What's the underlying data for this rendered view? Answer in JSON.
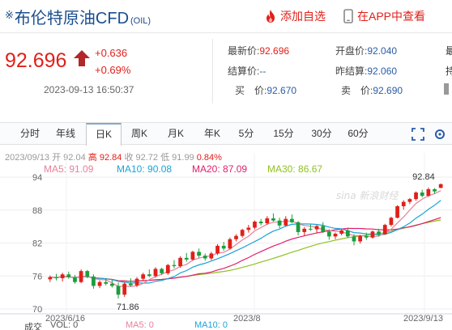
{
  "header": {
    "title_mark": "※",
    "title": "布伦特原油CFD",
    "code": "(OIL)",
    "add_watchlist": "添加自选",
    "view_in_app": "在APP中查看",
    "accent_color": "#e0201a",
    "title_color": "#1a4d8f"
  },
  "quote": {
    "price": "92.696",
    "change": "+0.636",
    "change_pct": "+0.69%",
    "time": "2023-09-13 16:50:37",
    "fields": {
      "latest": {
        "label": "最新价:",
        "value": "92.696"
      },
      "open": {
        "label": "开盘价:",
        "value": "92.040"
      },
      "settle": {
        "label": "结算价:",
        "value": "--"
      },
      "prev_settle": {
        "label": "昨结算:",
        "value": "92.060"
      },
      "bid": {
        "label": "买　价:",
        "value": "92.670"
      },
      "ask": {
        "label": "卖　价:",
        "value": "92.690"
      }
    },
    "cut_right_1": "最",
    "cut_right_2": "持"
  },
  "tabs": [
    {
      "label": "分时"
    },
    {
      "label": "年线"
    },
    {
      "label": "日K"
    },
    {
      "label": "周K"
    },
    {
      "label": "月K"
    },
    {
      "label": "年K"
    },
    {
      "label": "5分"
    },
    {
      "label": "15分"
    },
    {
      "label": "30分"
    },
    {
      "label": "60分"
    }
  ],
  "active_tab": "日K",
  "ohlc_line": {
    "date": "2023/09/13",
    "open": "开 92.04",
    "high": "高 92.84",
    "low": "收 92.72",
    "close": "低 91.99",
    "pct": "0.84%"
  },
  "ma": {
    "ma5": {
      "label": "MA5: 91.09",
      "color": "#e8809a"
    },
    "ma10": {
      "label": "MA10: 90.08",
      "color": "#1aa3d9"
    },
    "ma20": {
      "label": "MA20: 87.09",
      "color": "#e0206a"
    },
    "ma30": {
      "label": "MA30: 86.67",
      "color": "#8fc21f"
    }
  },
  "chart_data": {
    "type": "candlestick",
    "y_ticks": [
      "94",
      "88",
      "82",
      "76",
      "70"
    ],
    "ylim": [
      70,
      94
    ],
    "x_labels": [
      "2023/6/16",
      "2023/8",
      "2023/9/13"
    ],
    "max_label": "92.84",
    "min_label": "71.86",
    "watermark": "sina 新浪财经",
    "candles": [
      [
        75.4,
        76.1,
        74.9,
        75.8
      ],
      [
        75.8,
        76.4,
        75.2,
        75.6
      ],
      [
        75.6,
        76.6,
        75.0,
        76.3
      ],
      [
        76.3,
        76.8,
        75.5,
        75.8
      ],
      [
        75.8,
        76.2,
        74.6,
        74.9
      ],
      [
        74.9,
        77.2,
        74.7,
        76.9
      ],
      [
        76.9,
        77.1,
        75.6,
        75.9
      ],
      [
        75.9,
        76.3,
        73.7,
        74.2
      ],
      [
        74.2,
        75.2,
        73.8,
        74.9
      ],
      [
        74.9,
        75.6,
        74.3,
        74.6
      ],
      [
        74.6,
        75.3,
        73.9,
        74.2
      ],
      [
        74.2,
        74.8,
        71.9,
        72.6
      ],
      [
        72.6,
        74.9,
        72.2,
        74.6
      ],
      [
        74.6,
        75.6,
        74.1,
        74.3
      ],
      [
        74.3,
        75.8,
        74.0,
        75.5
      ],
      [
        75.5,
        76.6,
        75.1,
        76.3
      ],
      [
        76.3,
        77.2,
        75.8,
        76.0
      ],
      [
        76.0,
        77.6,
        75.7,
        77.3
      ],
      [
        77.3,
        77.5,
        76.2,
        76.5
      ],
      [
        76.5,
        78.2,
        76.2,
        78.0
      ],
      [
        78.0,
        78.9,
        77.4,
        77.8
      ],
      [
        77.8,
        79.6,
        77.5,
        79.3
      ],
      [
        79.3,
        80.2,
        78.6,
        79.0
      ],
      [
        79.0,
        80.6,
        78.8,
        80.4
      ],
      [
        80.4,
        81.0,
        79.3,
        79.7
      ],
      [
        79.7,
        80.1,
        78.8,
        79.2
      ],
      [
        79.2,
        80.4,
        78.9,
        80.1
      ],
      [
        80.1,
        81.8,
        79.8,
        81.5
      ],
      [
        81.5,
        82.2,
        80.6,
        81.0
      ],
      [
        81.0,
        83.0,
        80.8,
        82.7
      ],
      [
        82.7,
        83.6,
        82.3,
        83.3
      ],
      [
        83.3,
        84.6,
        83.0,
        84.4
      ],
      [
        84.4,
        85.3,
        83.9,
        84.8
      ],
      [
        84.8,
        86.1,
        84.5,
        85.9
      ],
      [
        85.9,
        86.4,
        85.2,
        85.6
      ],
      [
        85.6,
        86.9,
        85.3,
        86.5
      ],
      [
        86.5,
        87.4,
        85.9,
        86.1
      ],
      [
        86.1,
        86.6,
        84.7,
        85.2
      ],
      [
        85.2,
        86.9,
        85.0,
        86.4
      ],
      [
        86.4,
        87.2,
        85.6,
        85.8
      ],
      [
        85.8,
        86.0,
        83.4,
        84.0
      ],
      [
        84.0,
        84.9,
        83.3,
        84.6
      ],
      [
        84.6,
        85.4,
        84.2,
        84.5
      ],
      [
        84.5,
        85.3,
        83.9,
        85.1
      ],
      [
        85.1,
        85.8,
        83.8,
        84.1
      ],
      [
        84.1,
        84.5,
        82.6,
        83.2
      ],
      [
        83.2,
        83.9,
        82.7,
        83.7
      ],
      [
        83.7,
        84.6,
        83.4,
        84.3
      ],
      [
        84.3,
        84.8,
        82.9,
        83.2
      ],
      [
        83.2,
        83.6,
        81.6,
        82.3
      ],
      [
        82.3,
        83.5,
        81.9,
        83.3
      ],
      [
        83.3,
        83.9,
        82.6,
        83.0
      ],
      [
        83.0,
        84.3,
        82.8,
        84.1
      ],
      [
        84.1,
        84.6,
        83.2,
        83.6
      ],
      [
        83.6,
        85.5,
        83.5,
        85.3
      ],
      [
        85.3,
        86.8,
        85.0,
        86.6
      ],
      [
        86.6,
        88.9,
        86.5,
        88.7
      ],
      [
        88.7,
        89.8,
        88.1,
        89.5
      ],
      [
        89.5,
        90.2,
        89.1,
        90.0
      ],
      [
        90.0,
        91.4,
        89.7,
        91.2
      ],
      [
        91.2,
        91.7,
        90.3,
        90.6
      ],
      [
        90.6,
        92.1,
        90.4,
        91.8
      ],
      [
        91.8,
        92.0,
        91.0,
        91.4
      ],
      [
        92.04,
        92.84,
        91.99,
        92.72
      ]
    ],
    "volume_row": {
      "label": "成交",
      "vol": "VOL: 0",
      "ma5": "MA5: 0",
      "ma10": "MA10: 0"
    }
  }
}
